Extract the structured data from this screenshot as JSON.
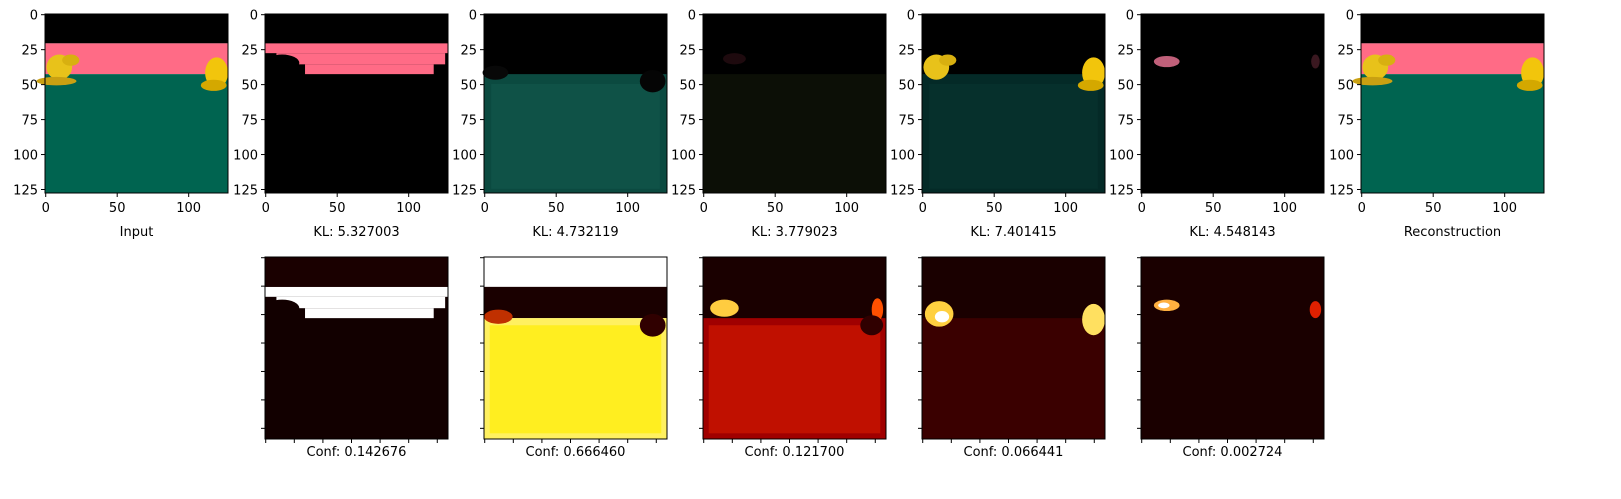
{
  "top_panels": [
    {
      "label": "Input"
    },
    {
      "label": "KL: 5.327003"
    },
    {
      "label": "KL: 4.732119"
    },
    {
      "label": "KL: 3.779023"
    },
    {
      "label": "KL: 7.401415"
    },
    {
      "label": "KL: 4.548143"
    },
    {
      "label": "Reconstruction"
    }
  ],
  "bottom_panels": [
    {
      "label": "Conf: 0.142676"
    },
    {
      "label": "Conf: 0.666460"
    },
    {
      "label": "Conf: 0.121700"
    },
    {
      "label": "Conf: 0.066441"
    },
    {
      "label": "Conf: 0.002724"
    }
  ],
  "axes": {
    "xlim": [
      -0.5,
      127.5
    ],
    "ylim": [
      -0.5,
      127.5
    ],
    "xticks": [
      0,
      50,
      100
    ],
    "yticks": [
      0,
      25,
      50,
      75,
      100,
      125
    ],
    "bottom_xticks": [
      0,
      20,
      40,
      60,
      80,
      100,
      120
    ],
    "bottom_yticks": [
      0,
      20,
      40,
      60,
      80,
      100,
      120
    ]
  }
}
